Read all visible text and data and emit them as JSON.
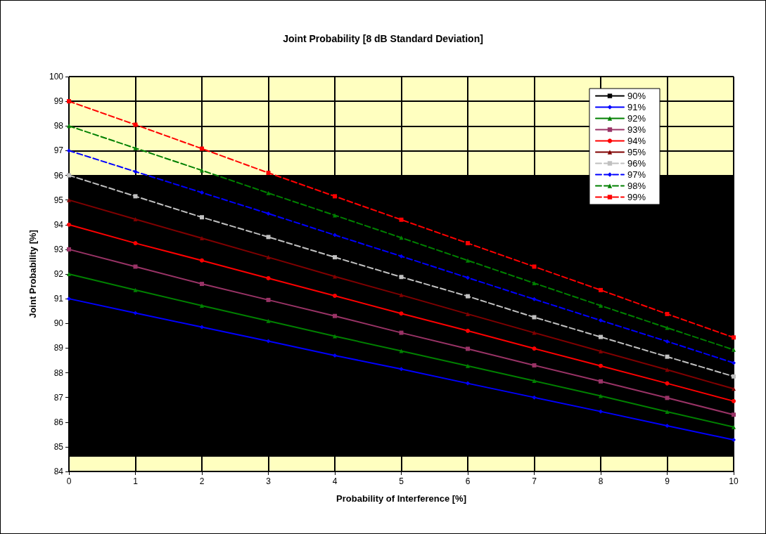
{
  "chart_data": {
    "type": "line",
    "title": "Joint Probability [8 dB Standard Deviation]",
    "xlabel": "Probability of Interference [%]",
    "ylabel": "Joint Probability [%]",
    "x": [
      0,
      1,
      2,
      3,
      4,
      5,
      6,
      7,
      8,
      9,
      10
    ],
    "xlim": [
      0,
      10
    ],
    "xticks": [
      0,
      1,
      2,
      3,
      4,
      5,
      6,
      7,
      8,
      9,
      10
    ],
    "ylim": [
      84,
      100
    ],
    "yticks": [
      84,
      85,
      86,
      87,
      88,
      89,
      90,
      91,
      92,
      93,
      94,
      95,
      96,
      97,
      98,
      99,
      100
    ],
    "grid": true,
    "legend": "top right",
    "bands": [
      {
        "axis": "y",
        "from": 84.6,
        "to": 96,
        "color": "#000000"
      }
    ],
    "series": [
      {
        "name": "90%",
        "color": "#000000",
        "line_style": "solid",
        "marker": "square",
        "values": [
          null,
          null,
          null,
          null,
          null,
          null,
          null,
          null,
          null,
          null,
          null
        ]
      },
      {
        "name": "91%",
        "color": "#0000ff",
        "line_style": "solid",
        "marker": "diamond",
        "values": [
          91,
          90.42,
          89.85,
          89.28,
          88.7,
          88.15,
          87.57,
          87,
          86.43,
          85.85,
          85.28
        ]
      },
      {
        "name": "92%",
        "color": "#008000",
        "line_style": "solid",
        "marker": "triangle",
        "values": [
          92,
          91.35,
          90.72,
          90.1,
          89.48,
          88.88,
          88.28,
          87.67,
          87.06,
          86.42,
          85.8
        ]
      },
      {
        "name": "93%",
        "color": "#993366",
        "line_style": "solid",
        "marker": "square",
        "values": [
          93,
          92.3,
          91.6,
          90.95,
          90.3,
          89.62,
          88.97,
          88.3,
          87.65,
          86.98,
          86.3
        ]
      },
      {
        "name": "94%",
        "color": "#ff0000",
        "line_style": "solid",
        "marker": "circle",
        "values": [
          94,
          93.25,
          92.55,
          91.83,
          91.12,
          90.4,
          89.7,
          88.98,
          88.28,
          87.57,
          86.85
        ]
      },
      {
        "name": "95%",
        "color": "#800000",
        "line_style": "solid",
        "marker": "triangle",
        "values": [
          95,
          94.22,
          93.45,
          92.68,
          91.9,
          91.15,
          90.38,
          89.62,
          88.87,
          88.12,
          87.35
        ]
      },
      {
        "name": "96%",
        "color": "#c0c0c0",
        "line_style": "dashed",
        "marker": "square",
        "values": [
          96,
          95.15,
          94.3,
          93.5,
          92.68,
          91.88,
          91.1,
          90.25,
          89.45,
          88.65,
          87.85
        ]
      },
      {
        "name": "97%",
        "color": "#0000ff",
        "line_style": "dashed",
        "marker": "diamond",
        "values": [
          97,
          96.15,
          95.3,
          94.45,
          93.58,
          92.72,
          91.85,
          90.98,
          90.12,
          89.27,
          88.4
        ]
      },
      {
        "name": "98%",
        "color": "#008000",
        "line_style": "dashed",
        "marker": "triangle",
        "values": [
          98,
          97.1,
          96.2,
          95.28,
          94.38,
          93.47,
          92.55,
          91.63,
          90.72,
          89.82,
          88.93
        ]
      },
      {
        "name": "99%",
        "color": "#ff0000",
        "line_style": "dashed",
        "marker": "square",
        "values": [
          99,
          98.05,
          97.08,
          96.1,
          95.15,
          94.2,
          93.25,
          92.3,
          91.35,
          90.38,
          89.43
        ]
      }
    ]
  }
}
